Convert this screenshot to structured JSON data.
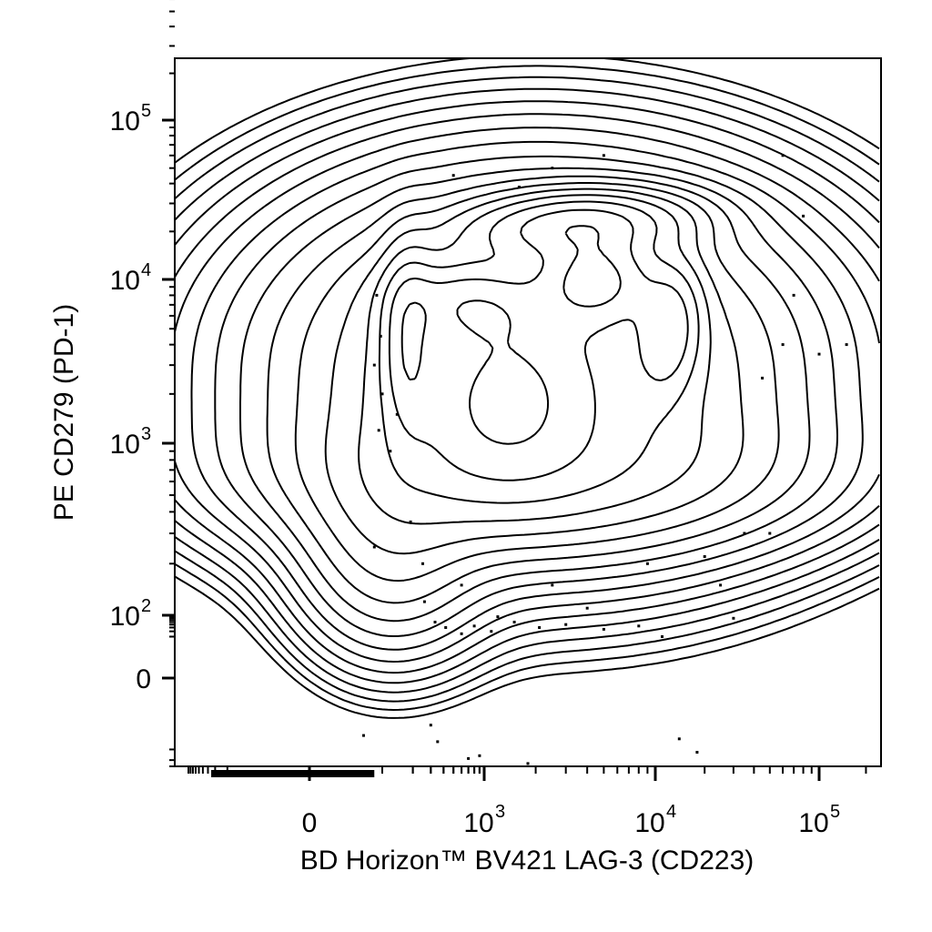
{
  "chart_data": {
    "type": "contour",
    "xlabel": "BD Horizon™ BV421 LAG-3 (CD223)",
    "ylabel": "PE CD279 (PD-1)",
    "x_scale": "biexponential",
    "y_scale": "biexponential",
    "xlim": [
      -1000,
      250000
    ],
    "ylim": [
      -300,
      250000
    ],
    "x_ticks": [
      {
        "value": 0,
        "base": "0",
        "exp": ""
      },
      {
        "value": 1000,
        "base": "10",
        "exp": "3"
      },
      {
        "value": 10000,
        "base": "10",
        "exp": "4"
      },
      {
        "value": 100000,
        "base": "10",
        "exp": "5"
      }
    ],
    "y_ticks": [
      {
        "value": 0,
        "base": "0",
        "exp": ""
      },
      {
        "value": 100,
        "base": "10",
        "exp": "2"
      },
      {
        "value": 1000,
        "base": "10",
        "exp": "3"
      },
      {
        "value": 10000,
        "base": "10",
        "exp": "4"
      },
      {
        "value": 100000,
        "base": "10",
        "exp": "5"
      }
    ],
    "populations": [
      {
        "name_hidden": true,
        "x": 3500,
        "y": 22000
      },
      {
        "name_hidden": true,
        "x": 4500,
        "y": 10000
      },
      {
        "name_hidden": true,
        "x": 12000,
        "y": 5000
      },
      {
        "name_hidden": true,
        "x": 180,
        "y": 4000
      },
      {
        "name_hidden": true,
        "x": 700,
        "y": 7000
      },
      {
        "name_hidden": true,
        "x": 1300,
        "y": 1800
      }
    ],
    "contour_levels": 18,
    "outliers": [
      [
        120,
        900
      ],
      [
        190,
        350
      ],
      [
        260,
        120
      ],
      [
        330,
        60
      ],
      [
        420,
        40
      ],
      [
        600,
        25
      ],
      [
        800,
        45
      ],
      [
        1100,
        30
      ],
      [
        1500,
        60
      ],
      [
        2100,
        40
      ],
      [
        3000,
        50
      ],
      [
        5000,
        35
      ],
      [
        8000,
        45
      ],
      [
        11000,
        20
      ],
      [
        14000,
        -50
      ],
      [
        18000,
        -120
      ],
      [
        900,
        -150
      ],
      [
        1800,
        -250
      ],
      [
        700,
        -180
      ],
      [
        30,
        -40
      ],
      [
        300,
        -20
      ],
      [
        350,
        -60
      ],
      [
        60,
        250
      ],
      [
        45000,
        2500
      ],
      [
        60000,
        4000
      ],
      [
        70000,
        8000
      ],
      [
        80000,
        25000
      ],
      [
        60000,
        60000
      ],
      [
        100000,
        3500
      ],
      [
        150000,
        4000
      ],
      [
        35000,
        300
      ],
      [
        50000,
        300
      ],
      [
        5000,
        60000
      ],
      [
        2500,
        50000
      ],
      [
        500,
        45000
      ],
      [
        1600,
        38000
      ],
      [
        70,
        8000
      ],
      [
        90,
        4500
      ],
      [
        60,
        3000
      ],
      [
        100,
        2000
      ],
      [
        140,
        1500
      ],
      [
        80,
        1200
      ],
      [
        250,
        200
      ],
      [
        600,
        150
      ],
      [
        1200,
        90
      ],
      [
        2500,
        150
      ],
      [
        4000,
        110
      ],
      [
        9000,
        200
      ],
      [
        25000,
        150
      ],
      [
        20000,
        220
      ],
      [
        30000,
        80
      ]
    ]
  }
}
